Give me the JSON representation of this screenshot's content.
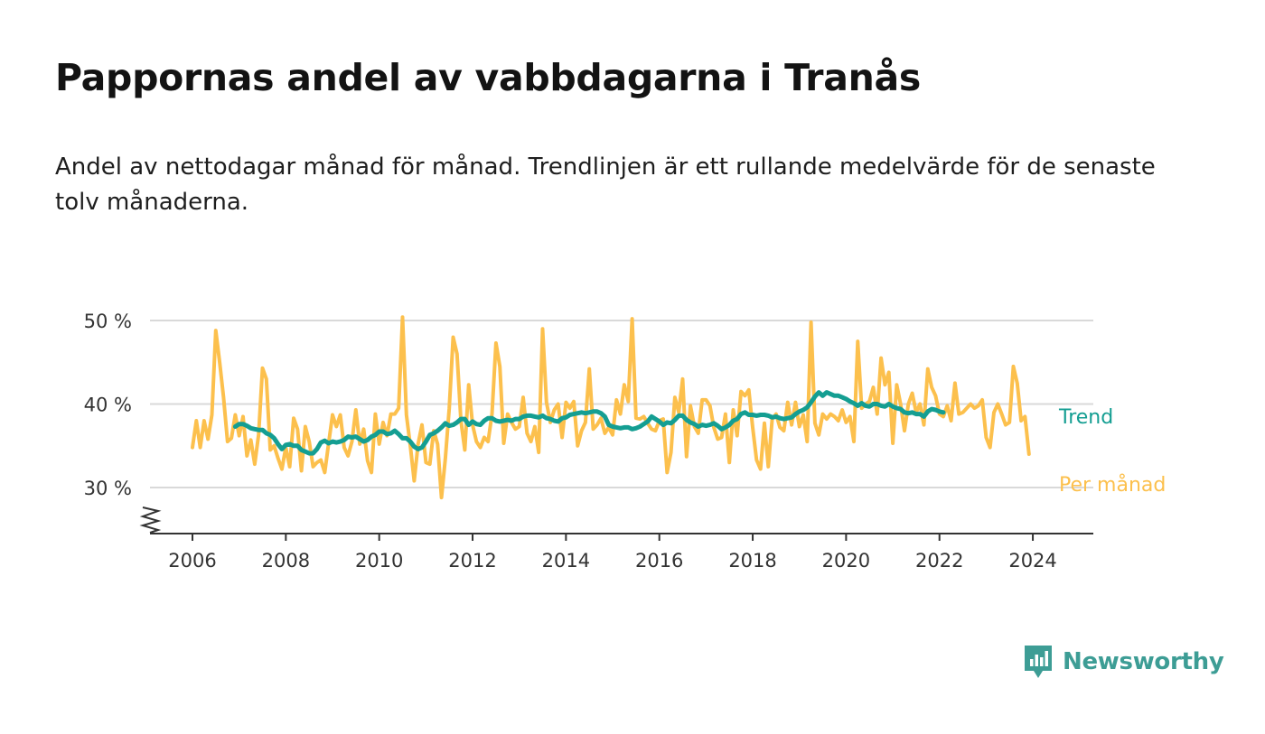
{
  "header": {
    "title": "Pappornas andel av vabbdagarna i Tranås",
    "subtitle": "Andel av nettodagar månad för månad. Trendlinjen är ett rullande medelvärde för de senaste tolv månaderna."
  },
  "logo": {
    "text": "Newsworthy",
    "icon": "newsworthy-bar-chart-icon",
    "color": "#3d9d95"
  },
  "chart_data": {
    "type": "line",
    "title": "Pappornas andel av vabbdagarna i Tranås",
    "subtitle": "Andel av nettodagar månad för månad. Trendlinjen är ett rullande medelvärde för de senaste tolv månaderna.",
    "xlabel": "",
    "ylabel": "",
    "x_ticks": [
      2006,
      2008,
      2010,
      2012,
      2014,
      2016,
      2018,
      2020,
      2022,
      2024
    ],
    "x_tick_labels": [
      "2006",
      "2008",
      "2010",
      "2012",
      "2014",
      "2016",
      "2018",
      "2020",
      "2022",
      "2024"
    ],
    "y_ticks": [
      30,
      40,
      50
    ],
    "y_tick_labels": [
      "30 %",
      "40 %",
      "50 %"
    ],
    "ylim": [
      25,
      50
    ],
    "y_axis_break": true,
    "grid": "horizontal",
    "legend": "direct labels at line ends (right)",
    "series": [
      {
        "name": "Per månad",
        "color": "#fcc04d",
        "start": "2006-01",
        "frequency": "monthly",
        "values": [
          34.8,
          38.0,
          34.8,
          38.0,
          35.8,
          38.7,
          48.8,
          45.0,
          40.8,
          35.5,
          35.9,
          38.7,
          36.2,
          38.5,
          33.8,
          35.7,
          32.8,
          36.3,
          44.3,
          43.0,
          34.5,
          35.0,
          33.5,
          32.2,
          34.8,
          32.5,
          38.3,
          37.0,
          32.0,
          37.3,
          35.5,
          32.5,
          33.0,
          33.3,
          31.8,
          35.3,
          38.7,
          37.3,
          38.7,
          34.8,
          33.8,
          35.5,
          39.3,
          35.2,
          37.0,
          33.2,
          31.8,
          38.8,
          35.2,
          37.8,
          36.2,
          38.8,
          38.8,
          39.5,
          50.4,
          38.7,
          35.0,
          30.8,
          35.2,
          37.5,
          33.0,
          32.8,
          36.8,
          35.2,
          28.8,
          33.5,
          39.5,
          48.0,
          46.0,
          38.0,
          34.5,
          42.3,
          37.5,
          35.5,
          34.8,
          36.0,
          35.5,
          38.8,
          47.3,
          44.5,
          35.3,
          38.8,
          37.8,
          37.0,
          37.3,
          40.8,
          36.5,
          35.5,
          37.3,
          34.2,
          49.0,
          40.2,
          37.8,
          39.3,
          40.0,
          36.0,
          40.2,
          39.5,
          40.3,
          35.0,
          36.8,
          37.8,
          44.2,
          37.0,
          37.5,
          38.3,
          36.5,
          37.2,
          36.3,
          40.5,
          38.8,
          42.3,
          40.3,
          50.2,
          38.3,
          38.2,
          38.5,
          37.7,
          37.0,
          36.8,
          38.0,
          38.2,
          31.8,
          34.2,
          40.8,
          39.0,
          43.0,
          33.7,
          39.8,
          37.3,
          36.5,
          40.5,
          40.5,
          39.8,
          37.2,
          35.8,
          36.0,
          38.8,
          33.0,
          39.3,
          36.2,
          41.5,
          41.0,
          41.7,
          37.2,
          33.3,
          32.2,
          37.7,
          32.5,
          38.2,
          38.8,
          37.2,
          36.8,
          40.2,
          37.5,
          40.2,
          37.3,
          38.7,
          35.5,
          49.8,
          37.7,
          36.3,
          38.8,
          38.2,
          38.8,
          38.5,
          38.0,
          39.3,
          37.8,
          38.5,
          35.5,
          47.5,
          39.5,
          40.0,
          40.3,
          42.0,
          38.8,
          45.5,
          42.3,
          43.8,
          35.3,
          42.3,
          40.0,
          36.8,
          40.0,
          41.3,
          39.0,
          40.0,
          37.5,
          44.2,
          42.0,
          41.0,
          38.8,
          38.5,
          39.8,
          38.0,
          42.5,
          38.8,
          39.0,
          39.5,
          40.0,
          39.5,
          39.8,
          40.5,
          36.0,
          34.8,
          39.0,
          40.0,
          38.8,
          37.5,
          37.8,
          44.5,
          42.5,
          38.0,
          38.5,
          34.0
        ]
      },
      {
        "name": "Trend",
        "color": "#149e92",
        "start": "2006-12",
        "frequency": "monthly",
        "values": [
          37.3,
          37.6,
          37.6,
          37.4,
          37.1,
          37.0,
          36.9,
          36.9,
          36.5,
          36.3,
          35.9,
          35.2,
          34.6,
          35.1,
          35.2,
          35.0,
          35.0,
          34.5,
          34.3,
          34.1,
          34.1,
          34.6,
          35.4,
          35.6,
          35.3,
          35.5,
          35.4,
          35.5,
          35.7,
          36.1,
          36.0,
          36.1,
          35.8,
          35.5,
          35.7,
          36.1,
          36.3,
          36.7,
          36.7,
          36.4,
          36.5,
          36.8,
          36.4,
          35.9,
          35.9,
          35.5,
          34.9,
          34.6,
          34.8,
          35.5,
          36.3,
          36.5,
          36.8,
          37.2,
          37.7,
          37.4,
          37.5,
          37.8,
          38.2,
          38.2,
          37.5,
          37.9,
          37.6,
          37.5,
          38.0,
          38.3,
          38.3,
          38.0,
          37.9,
          38.0,
          38.1,
          38.0,
          38.2,
          38.2,
          38.5,
          38.6,
          38.6,
          38.5,
          38.4,
          38.6,
          38.3,
          38.2,
          38.0,
          37.9,
          38.3,
          38.4,
          38.7,
          38.8,
          38.9,
          39.0,
          38.9,
          39.0,
          39.1,
          39.1,
          38.9,
          38.5,
          37.5,
          37.3,
          37.2,
          37.1,
          37.2,
          37.2,
          37.0,
          37.1,
          37.3,
          37.6,
          37.9,
          38.5,
          38.2,
          37.9,
          37.5,
          37.8,
          37.7,
          38.1,
          38.6,
          38.6,
          38.1,
          37.8,
          37.6,
          37.3,
          37.5,
          37.4,
          37.5,
          37.7,
          37.4,
          37.0,
          37.2,
          37.5,
          38.0,
          38.2,
          38.8,
          39.0,
          38.7,
          38.7,
          38.6,
          38.7,
          38.7,
          38.6,
          38.4,
          38.5,
          38.3,
          38.2,
          38.3,
          38.4,
          38.8,
          39.1,
          39.3,
          39.6,
          40.2,
          40.9,
          41.4,
          41.0,
          41.4,
          41.2,
          41.0,
          41.0,
          40.8,
          40.6,
          40.3,
          40.1,
          39.8,
          40.1,
          39.8,
          39.7,
          40.0,
          40.0,
          39.8,
          39.7,
          40.0,
          39.7,
          39.5,
          39.4,
          39.0,
          38.9,
          39.0,
          38.8,
          38.8,
          38.5,
          39.1,
          39.4,
          39.3,
          39.1,
          39.0
        ]
      }
    ]
  }
}
